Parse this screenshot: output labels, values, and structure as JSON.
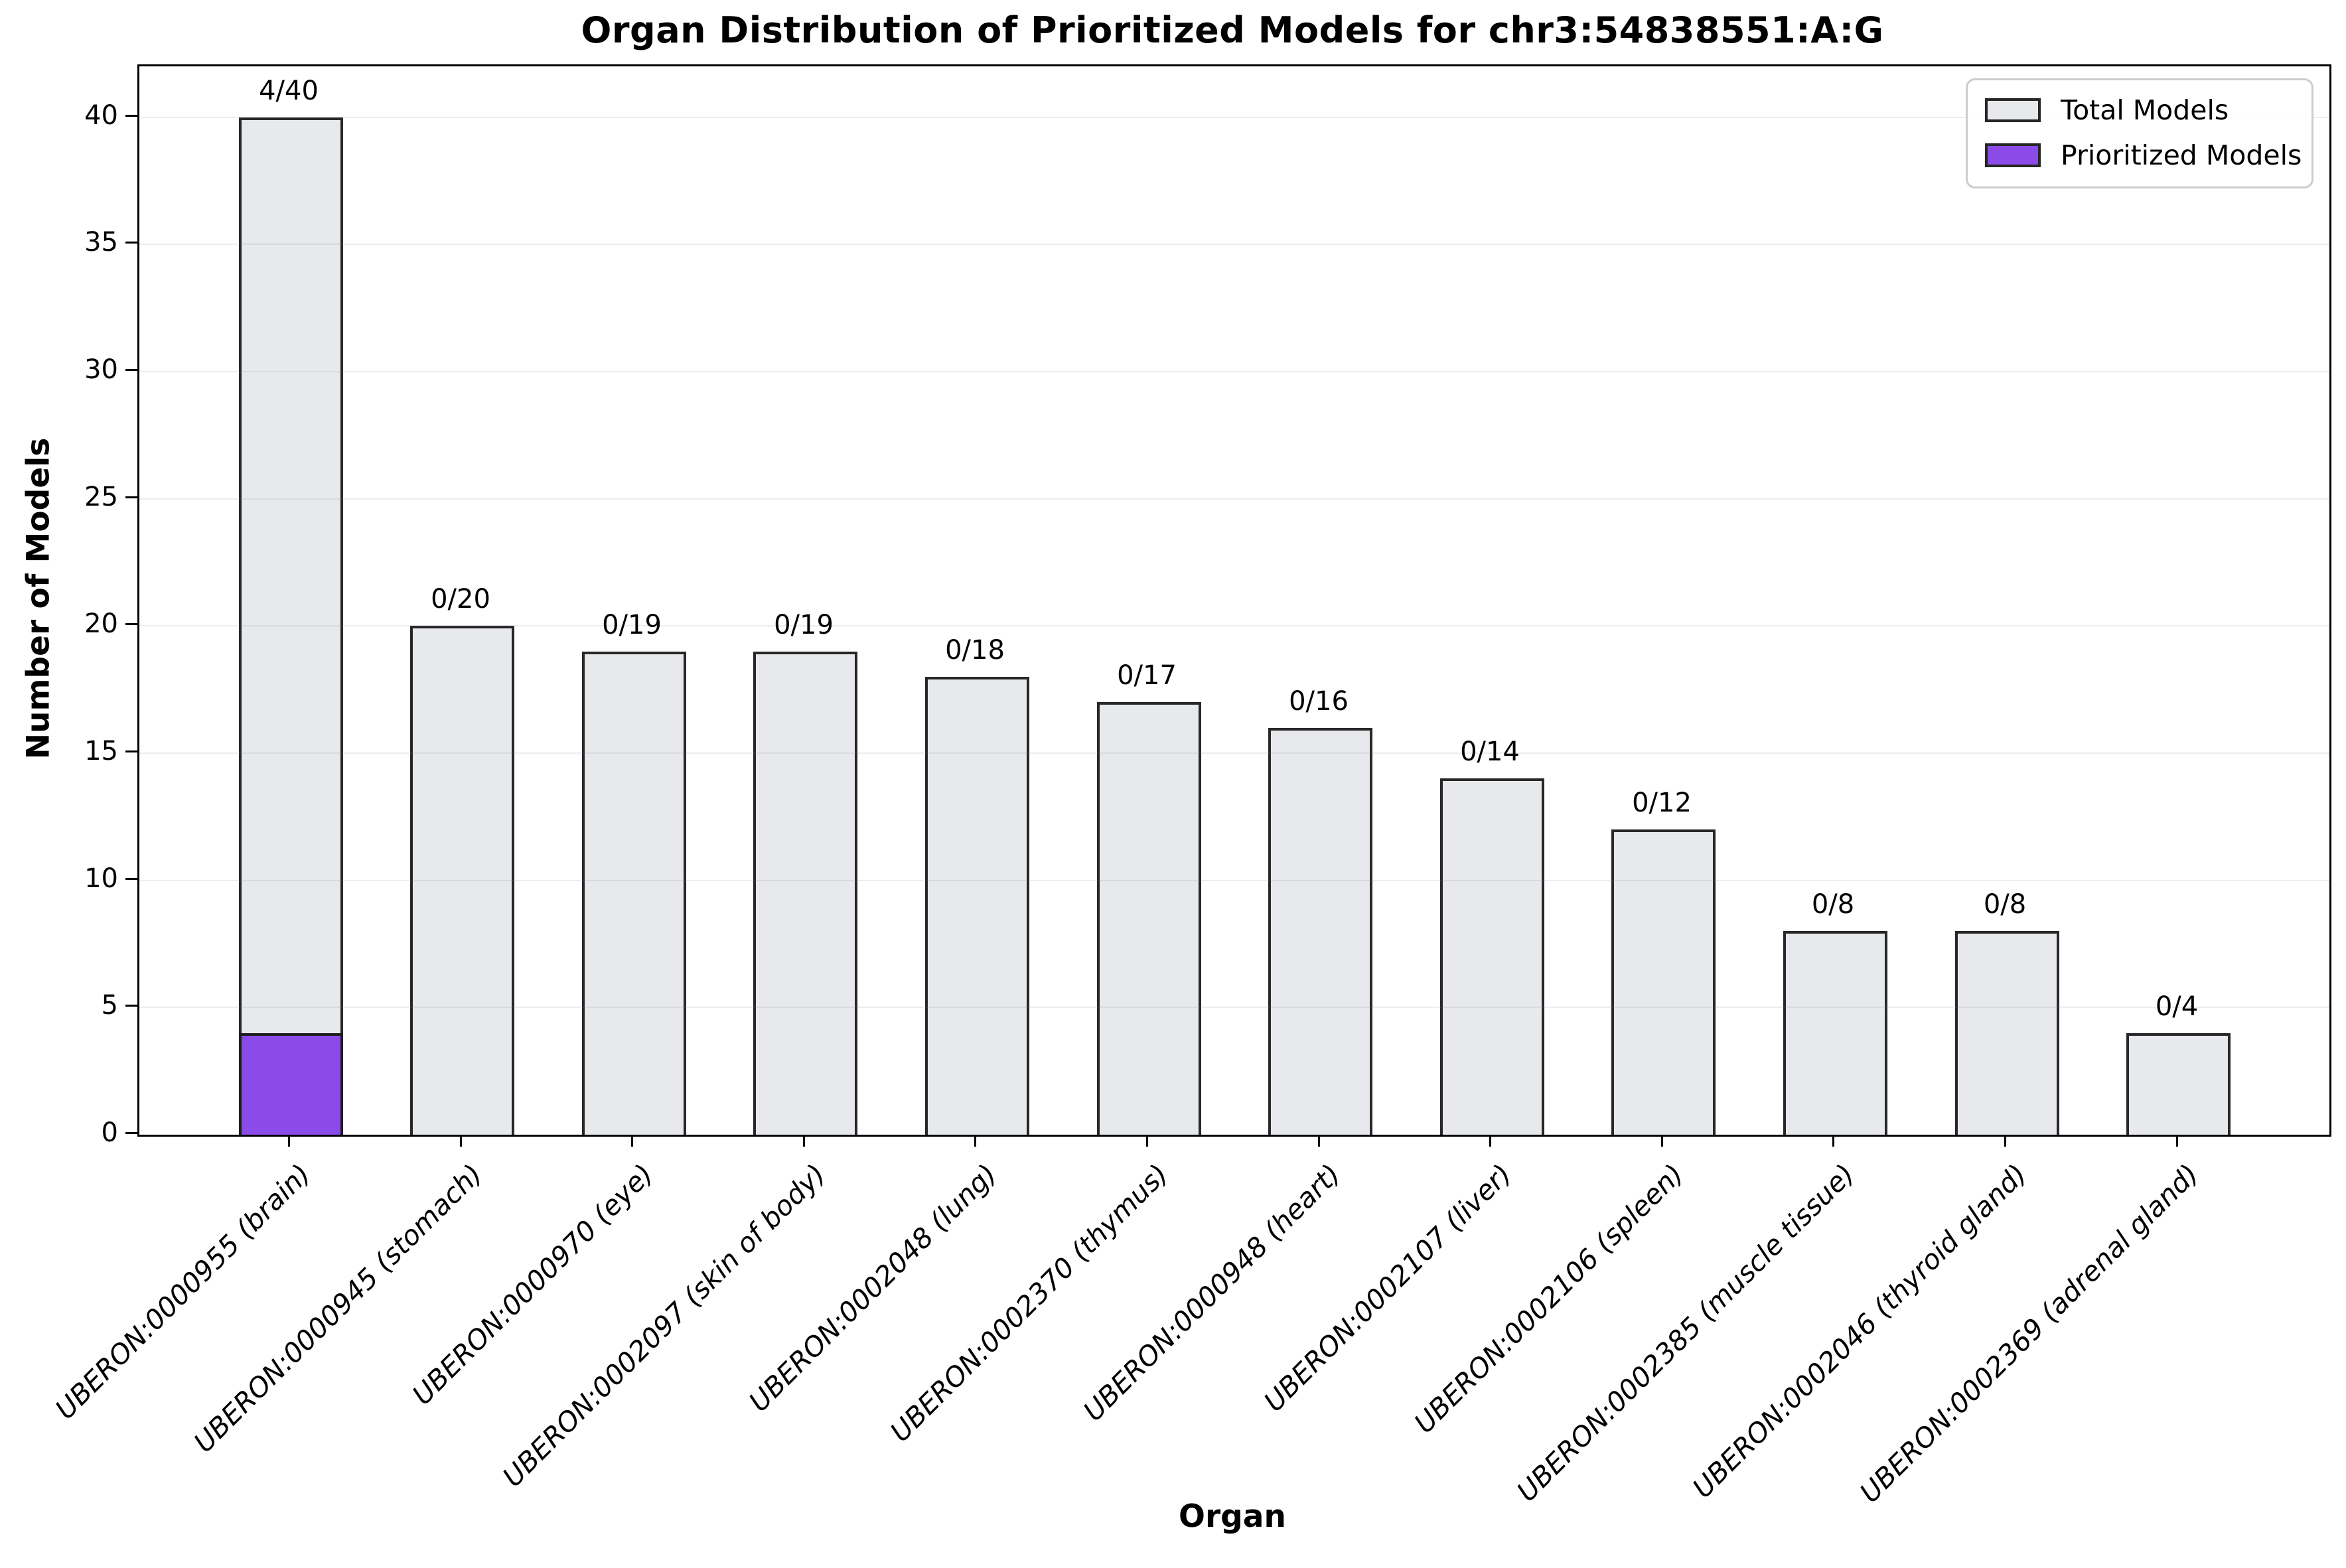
{
  "chart_data": {
    "type": "bar",
    "title": "Organ Distribution of Prioritized Models for chr3:54838551:A:G",
    "xlabel": "Organ",
    "ylabel": "Number of Models",
    "ylim": [
      0,
      42
    ],
    "yticks": [
      0,
      5,
      10,
      15,
      20,
      25,
      30,
      35,
      40
    ],
    "grid": true,
    "legend_position": "upper right",
    "categories": [
      "UBERON:0000955 (brain)",
      "UBERON:0000945 (stomach)",
      "UBERON:0000970 (eye)",
      "UBERON:0002097 (skin of body)",
      "UBERON:0002048 (lung)",
      "UBERON:0002370 (thymus)",
      "UBERON:0000948 (heart)",
      "UBERON:0002107 (liver)",
      "UBERON:0002106 (spleen)",
      "UBERON:0002385 (muscle tissue)",
      "UBERON:0002046 (thyroid gland)",
      "UBERON:0002369 (adrenal gland)"
    ],
    "series": [
      {
        "name": "Total Models",
        "color": "#E8E9ED",
        "edge_color": "#282828",
        "values": [
          40,
          20,
          19,
          19,
          18,
          17,
          16,
          14,
          12,
          8,
          8,
          4
        ]
      },
      {
        "name": "Prioritized Models",
        "color": "#8A4BE8",
        "edge_color": "#1e1e1e",
        "values": [
          4,
          0,
          0,
          0,
          0,
          0,
          0,
          0,
          0,
          0,
          0,
          0
        ]
      }
    ],
    "bar_labels": [
      "4/40",
      "0/20",
      "0/19",
      "0/19",
      "0/18",
      "0/17",
      "0/16",
      "0/14",
      "0/12",
      "0/8",
      "0/8",
      "0/4"
    ]
  },
  "legend": {
    "items": [
      {
        "label": "Total Models",
        "color": "#E8E9ED"
      },
      {
        "label": "Prioritized Models",
        "color": "#8A4BE8"
      }
    ]
  }
}
